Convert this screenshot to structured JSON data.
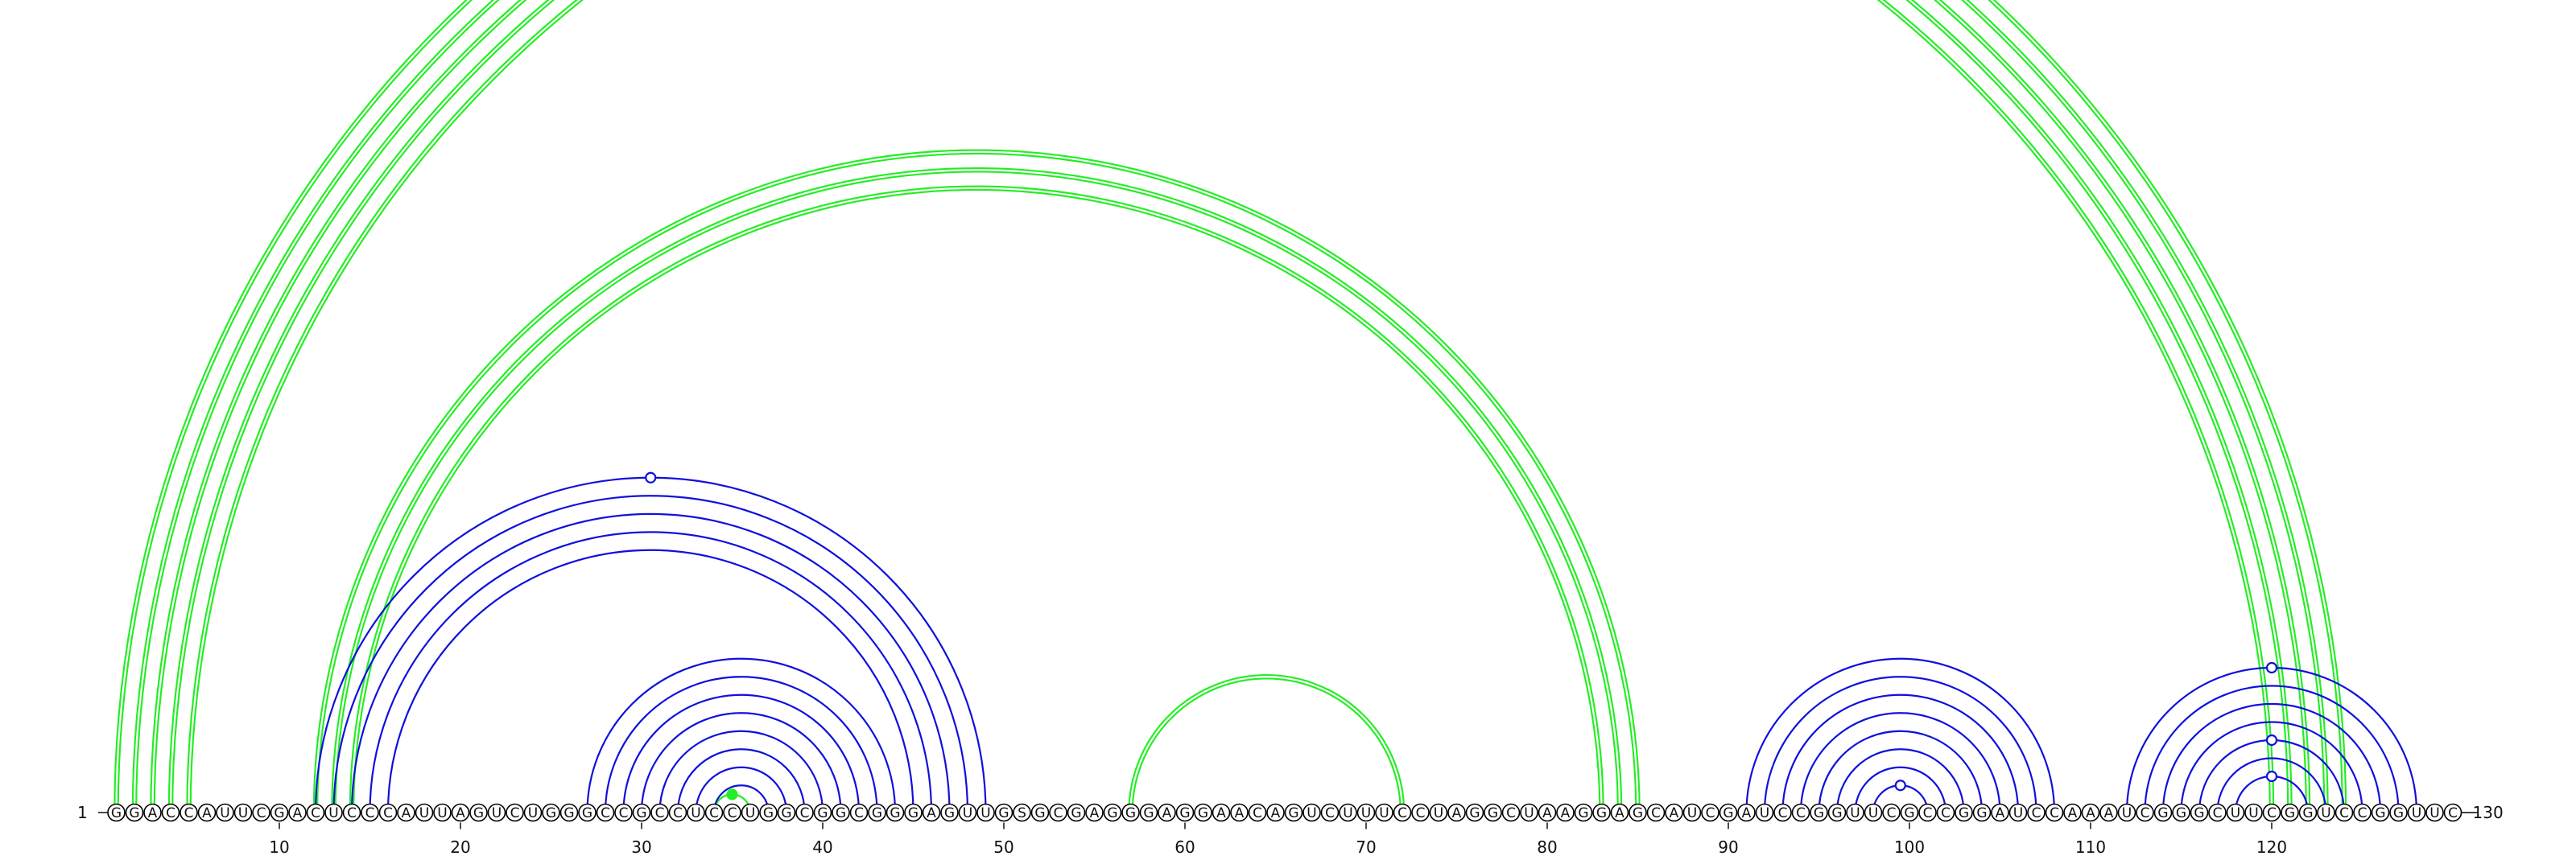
{
  "sequence": "GGACCAUUCGACUCCCAUUAGUCUGGGCCGCCUCCUGGCGGCGGGAGUUGSGCGAGGGAGGAACAGUCUUUCCUAGGCUAAGGAGCAUCGAUCCGGUUCGCCGGAUCCAAAUCGGGCUUCGGUCCGGUUC",
  "end_labels": {
    "start": "1",
    "end": "130"
  },
  "ticks": [
    10,
    20,
    30,
    40,
    50,
    60,
    70,
    80,
    90,
    100,
    110,
    120
  ],
  "colors": {
    "blue": "#1010dd",
    "green": "#22ee22"
  },
  "helices": [
    {
      "color": "green",
      "style": "double",
      "pairs": [
        [
          1,
          124
        ],
        [
          2,
          123
        ],
        [
          3,
          122
        ],
        [
          4,
          121
        ],
        [
          5,
          120
        ]
      ]
    },
    {
      "color": "green",
      "style": "double",
      "pairs": [
        [
          12,
          85
        ],
        [
          13,
          84
        ],
        [
          14,
          83
        ]
      ]
    },
    {
      "color": "green",
      "style": "double",
      "pairs": [
        [
          57,
          72
        ]
      ]
    },
    {
      "color": "green",
      "style": "single",
      "pairs": [
        [
          34,
          36
        ]
      ]
    },
    {
      "color": "blue",
      "style": "single",
      "pairs": [
        [
          12,
          49
        ],
        [
          13,
          48
        ],
        [
          14,
          47
        ],
        [
          15,
          46
        ],
        [
          16,
          45
        ]
      ]
    },
    {
      "color": "blue",
      "style": "single",
      "pairs": [
        [
          27,
          44
        ],
        [
          28,
          43
        ],
        [
          29,
          42
        ],
        [
          30,
          41
        ],
        [
          31,
          40
        ],
        [
          32,
          39
        ],
        [
          33,
          38
        ],
        [
          34,
          37
        ]
      ]
    },
    {
      "color": "blue",
      "style": "single",
      "pairs": [
        [
          91,
          108
        ],
        [
          92,
          107
        ],
        [
          93,
          106
        ],
        [
          94,
          105
        ],
        [
          95,
          104
        ],
        [
          96,
          103
        ],
        [
          97,
          102
        ],
        [
          98,
          101
        ]
      ]
    },
    {
      "color": "blue",
      "style": "single",
      "pairs": [
        [
          112,
          128
        ],
        [
          113,
          127
        ],
        [
          114,
          126
        ],
        [
          115,
          125
        ],
        [
          116,
          124
        ],
        [
          117,
          123
        ],
        [
          118,
          122
        ]
      ]
    }
  ],
  "markers": [
    {
      "i": 1,
      "j": 124,
      "color": "green",
      "filled": false
    },
    {
      "i": 12,
      "j": 49,
      "color": "blue",
      "filled": false
    },
    {
      "i": 34,
      "j": 36,
      "color": "green",
      "filled": true
    },
    {
      "i": 98,
      "j": 101,
      "color": "blue",
      "filled": false
    },
    {
      "i": 112,
      "j": 128,
      "color": "blue",
      "filled": false
    },
    {
      "i": 116,
      "j": 124,
      "color": "blue",
      "filled": false
    },
    {
      "i": 118,
      "j": 122,
      "color": "blue",
      "filled": false
    }
  ]
}
